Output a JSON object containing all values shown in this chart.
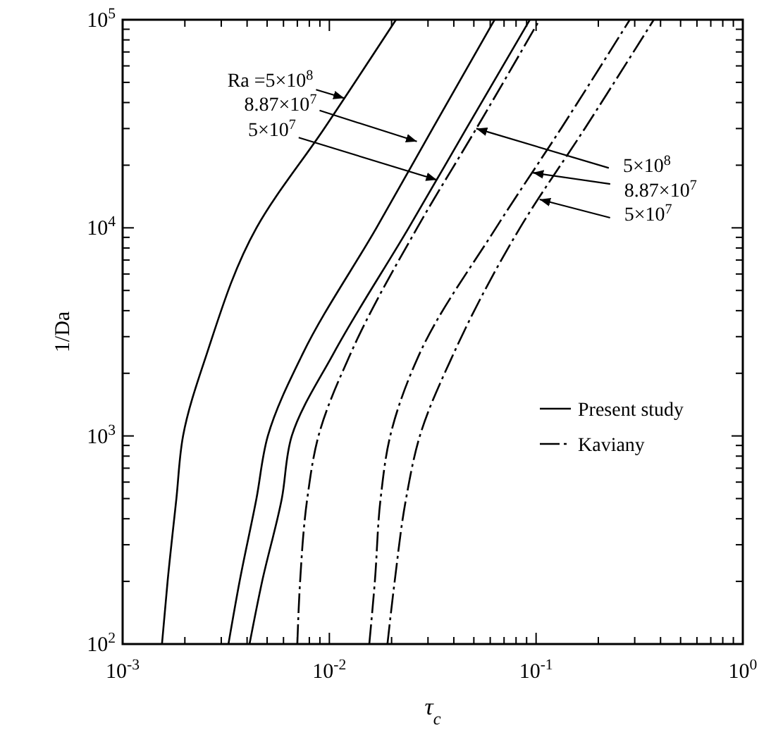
{
  "chart_data": {
    "type": "line",
    "xlabel": "τ$_{c}$",
    "ylabel": "1/Da",
    "log": "xy",
    "grid": false,
    "legend": "right",
    "marker": "none",
    "xlim": [
      0.001,
      1
    ],
    "ylim": [
      100,
      100000
    ],
    "xticks": [
      {
        "value": 0.001,
        "label": "10$^{-3}$"
      },
      {
        "value": 0.002,
        "label": null
      },
      {
        "value": 0.003,
        "label": null
      },
      {
        "value": 0.004,
        "label": null
      },
      {
        "value": 0.005,
        "label": null
      },
      {
        "value": 0.006,
        "label": null
      },
      {
        "value": 0.007,
        "label": null
      },
      {
        "value": 0.008,
        "label": null
      },
      {
        "value": 0.009,
        "label": null
      },
      {
        "value": 0.01,
        "label": "10$^{-2}$"
      },
      {
        "value": 0.02,
        "label": null
      },
      {
        "value": 0.03,
        "label": null
      },
      {
        "value": 0.04,
        "label": null
      },
      {
        "value": 0.05,
        "label": null
      },
      {
        "value": 0.06,
        "label": null
      },
      {
        "value": 0.07,
        "label": null
      },
      {
        "value": 0.08,
        "label": null
      },
      {
        "value": 0.09,
        "label": null
      },
      {
        "value": 0.1,
        "label": "10$^{-1}$"
      },
      {
        "value": 0.2,
        "label": null
      },
      {
        "value": 0.3,
        "label": null
      },
      {
        "value": 0.4,
        "label": null
      },
      {
        "value": 0.5,
        "label": null
      },
      {
        "value": 0.6,
        "label": null
      },
      {
        "value": 0.7,
        "label": null
      },
      {
        "value": 0.8,
        "label": null
      },
      {
        "value": 0.9,
        "label": null
      },
      {
        "value": 1,
        "label": "10$^{0}$"
      }
    ],
    "yticks": [
      {
        "value": 100,
        "label": "10$^{2}$"
      },
      {
        "value": 200,
        "label": null
      },
      {
        "value": 300,
        "label": null
      },
      {
        "value": 400,
        "label": null
      },
      {
        "value": 500,
        "label": null
      },
      {
        "value": 600,
        "label": null
      },
      {
        "value": 700,
        "label": null
      },
      {
        "value": 800,
        "label": null
      },
      {
        "value": 900,
        "label": null
      },
      {
        "value": 1000,
        "label": "10$^{3}$"
      },
      {
        "value": 2000,
        "label": null
      },
      {
        "value": 3000,
        "label": null
      },
      {
        "value": 4000,
        "label": null
      },
      {
        "value": 5000,
        "label": null
      },
      {
        "value": 6000,
        "label": null
      },
      {
        "value": 7000,
        "label": null
      },
      {
        "value": 8000,
        "label": null
      },
      {
        "value": 9000,
        "label": null
      },
      {
        "value": 10000,
        "label": "10$^{4}$"
      },
      {
        "value": 20000,
        "label": null
      },
      {
        "value": 30000,
        "label": null
      },
      {
        "value": 40000,
        "label": null
      },
      {
        "value": 50000,
        "label": null
      },
      {
        "value": 60000,
        "label": null
      },
      {
        "value": 70000,
        "label": null
      },
      {
        "value": 80000,
        "label": null
      },
      {
        "value": 90000,
        "label": null
      },
      {
        "value": 100000,
        "label": "10$^{5}$"
      }
    ],
    "series": [
      {
        "name": "Present study",
        "color": "#000000",
        "line_style": "solid",
        "x": [
          0.00155,
          0.00165,
          0.00182,
          0.00196,
          0.00256,
          0.00444,
          0.00944,
          0.021
        ],
        "values": [
          100,
          200,
          500,
          1000,
          2500,
          10000,
          30000,
          100000
        ]
      },
      {
        "color": "#000000",
        "line_style": "solid",
        "x": [
          0.00325,
          0.00368,
          0.00444,
          0.00504,
          0.00746,
          0.0169,
          0.0316,
          0.063
        ],
        "values": [
          100,
          200,
          500,
          1000,
          2500,
          10000,
          30000,
          100000
        ]
      },
      {
        "color": "#000000",
        "line_style": "solid",
        "x": [
          0.00411,
          0.00473,
          0.00589,
          0.00658,
          0.0105,
          0.0242,
          0.046,
          0.0933
        ],
        "values": [
          100,
          200,
          500,
          1000,
          2500,
          10000,
          30000,
          100000
        ]
      },
      {
        "name": "Kaviany",
        "color": "#000000",
        "line_style": "dashdot",
        "x": [
          0.007,
          0.00722,
          0.00782,
          0.00886,
          0.0127,
          0.0266,
          0.0514,
          0.104
        ],
        "values": [
          100,
          200,
          500,
          1000,
          2500,
          10000,
          30000,
          100000
        ]
      },
      {
        "color": "#000000",
        "line_style": "dashdot",
        "x": [
          0.0156,
          0.0166,
          0.0177,
          0.0197,
          0.0274,
          0.064,
          0.132,
          0.284
        ],
        "values": [
          100,
          200,
          500,
          1000,
          2500,
          10000,
          30000,
          100000
        ]
      },
      {
        "color": "#000000",
        "line_style": "dashdot",
        "x": [
          0.0191,
          0.0207,
          0.0235,
          0.0274,
          0.04,
          0.0836,
          0.172,
          0.371
        ],
        "values": [
          100,
          200,
          500,
          1000,
          2500,
          10000,
          30000,
          100000
        ]
      }
    ],
    "annotations": [
      {
        "text": "Ra =5×10$^{8}$",
        "x": 0.0118,
        "y": 42000
      },
      {
        "text": "8.87×10$^{7}$",
        "x": 0.0265,
        "y": 26000
      },
      {
        "text": "5×10$^{7}$",
        "x": 0.0331,
        "y": 17000
      },
      {
        "text": "5×10$^{8}$",
        "x": 0.0514,
        "y": 30000
      },
      {
        "text": "8.87×10$^{7}$",
        "x": 0.0963,
        "y": 18400
      },
      {
        "text": "5×10$^{7}$",
        "x": 0.104,
        "y": 13700
      }
    ]
  }
}
